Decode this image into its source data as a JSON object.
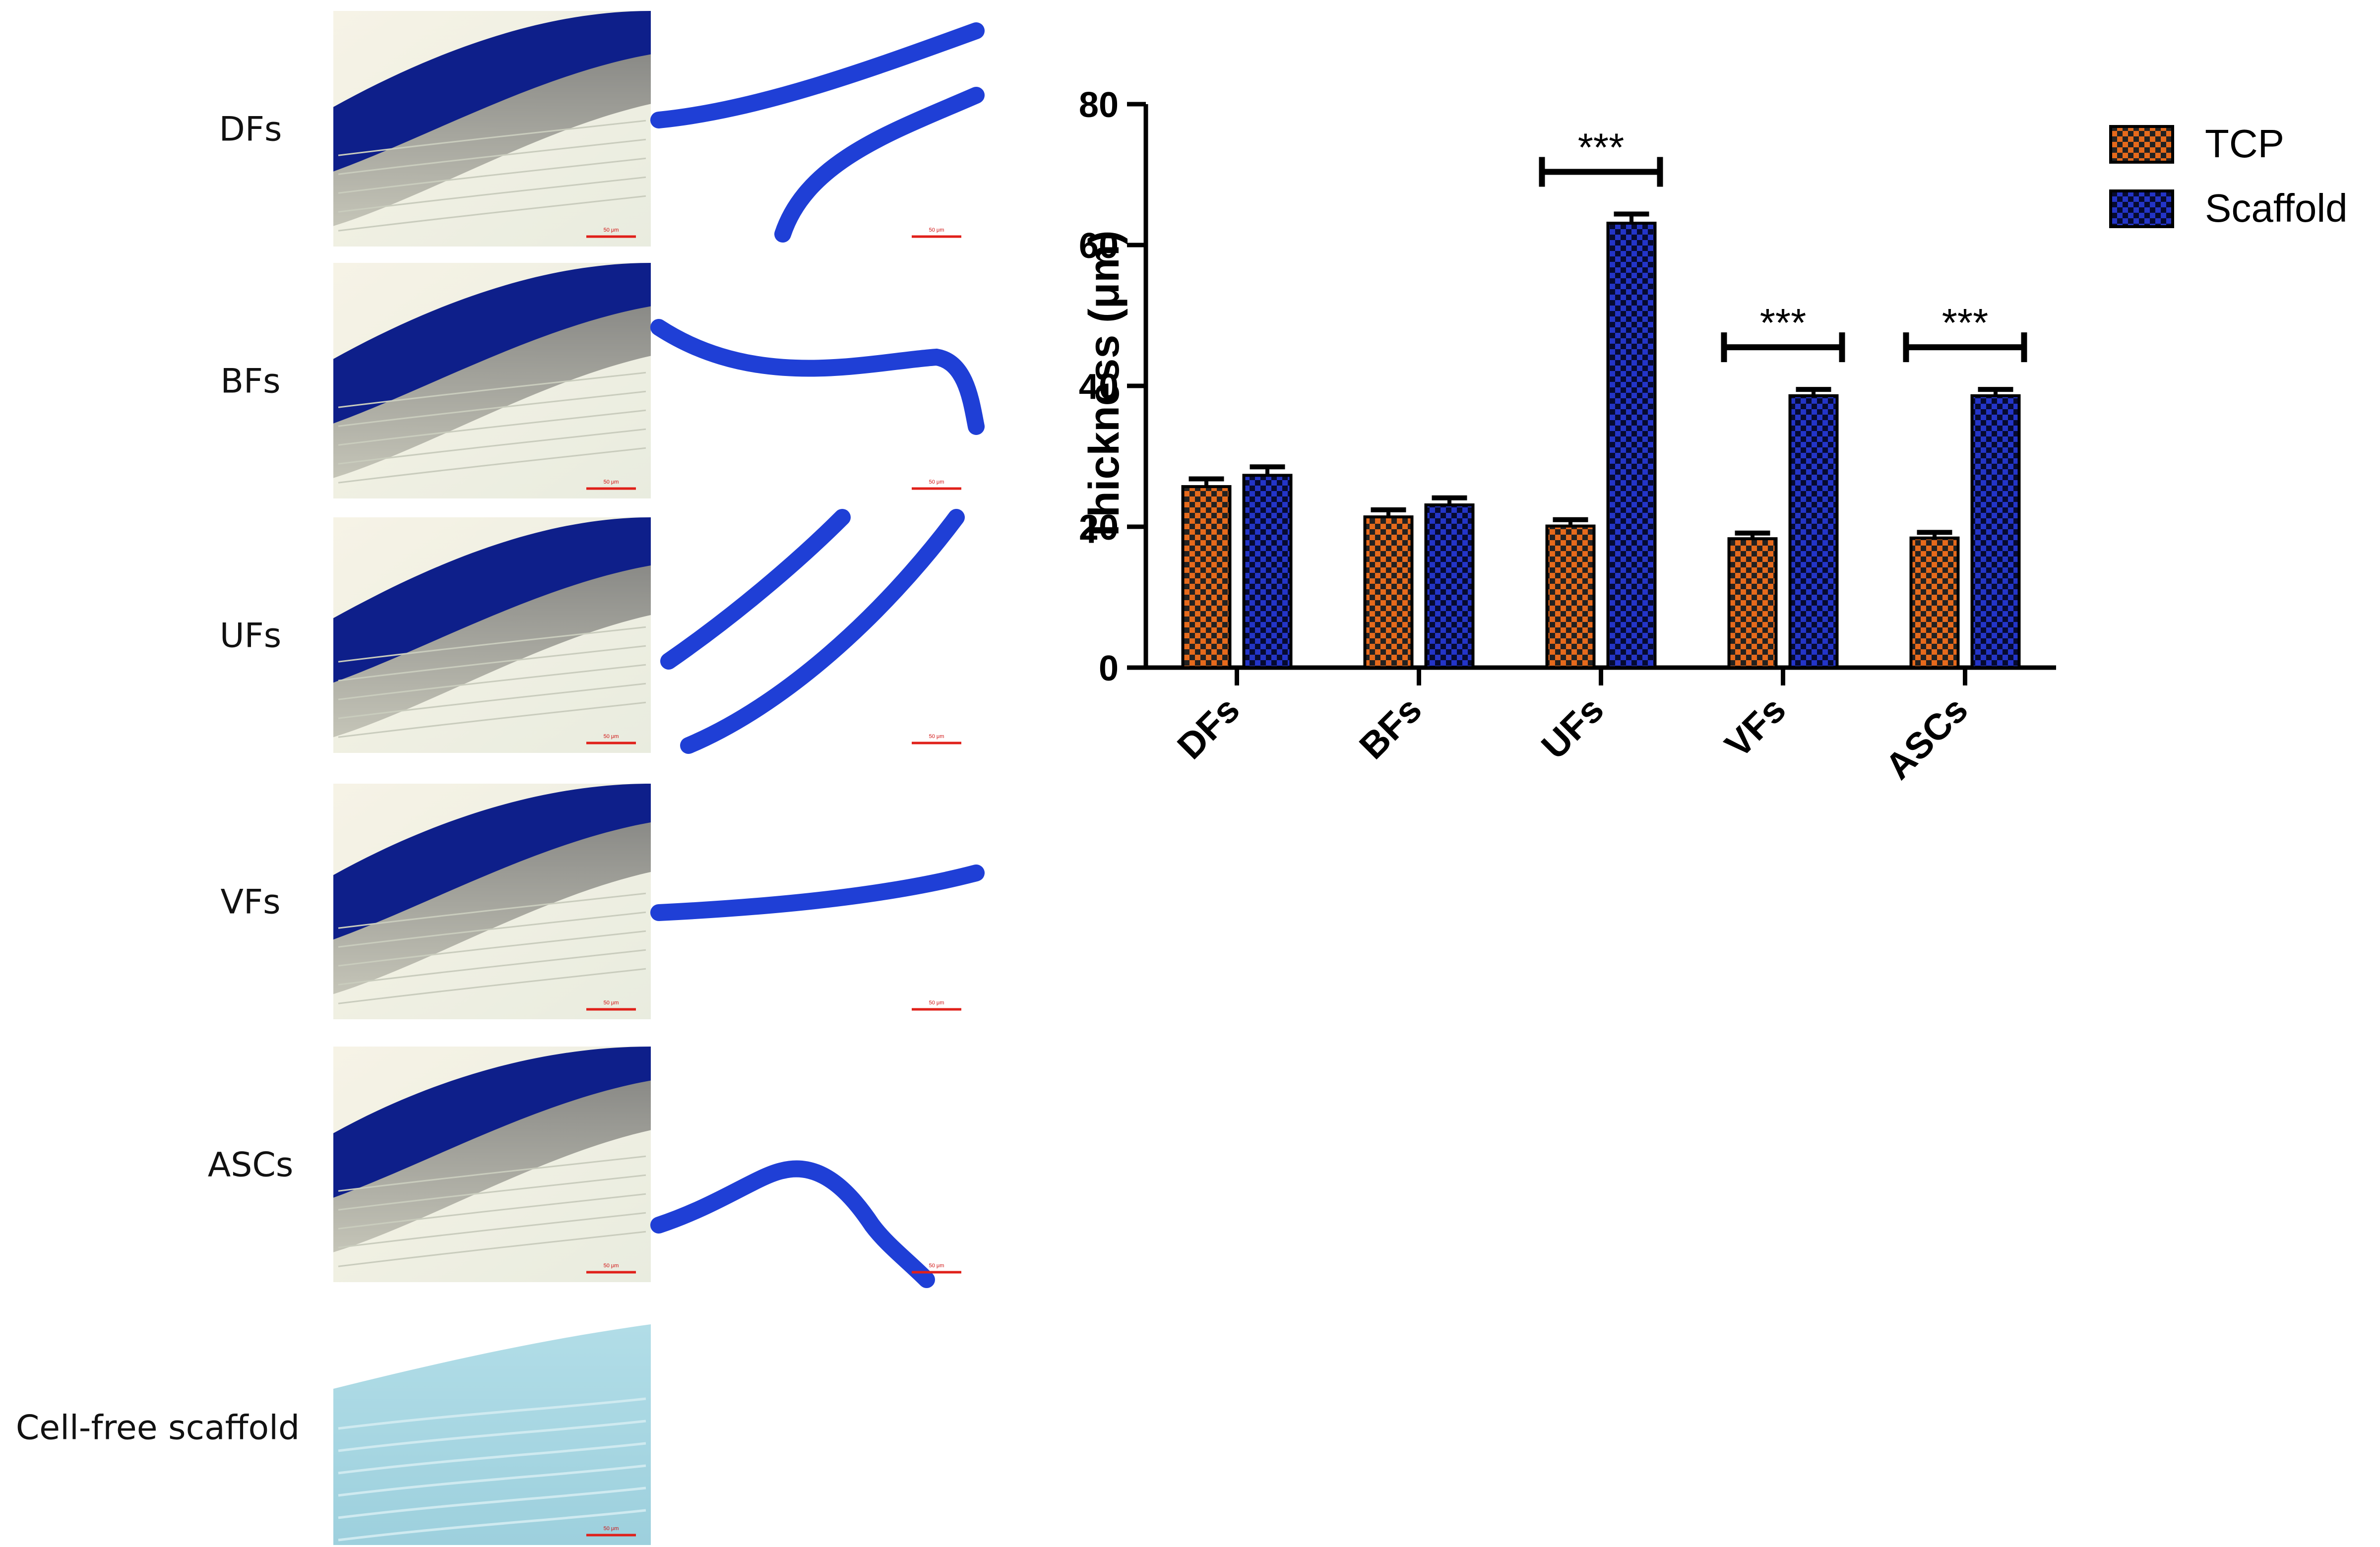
{
  "panel_a": {
    "rows": [
      {
        "label": "DFs",
        "tissue_tcp": true,
        "tissue_scaffold": true,
        "scalebar_tcp": "50 μm",
        "scalebar_scaffold": "50 μm"
      },
      {
        "label": "BFs",
        "tissue_tcp": true,
        "tissue_scaffold": true,
        "scalebar_tcp": "50 μm",
        "scalebar_scaffold": "50 μm"
      },
      {
        "label": "UFs",
        "tissue_tcp": true,
        "tissue_scaffold": true,
        "scalebar_tcp": "50 μm",
        "scalebar_scaffold": "50 μm"
      },
      {
        "label": "VFs",
        "tissue_tcp": true,
        "tissue_scaffold": true,
        "scalebar_tcp": "50 μm",
        "scalebar_scaffold": "50 μm"
      },
      {
        "label": "ASCs",
        "tissue_tcp": true,
        "tissue_scaffold": true,
        "scalebar_tcp": "50 μm",
        "scalebar_scaffold": "50 μm"
      },
      {
        "label": "Cell-free scaffold",
        "tissue_tcp": true,
        "tissue_scaffold": false,
        "scalebar_tcp": "50 μm",
        "scalebar_scaffold": ""
      }
    ],
    "colors": {
      "tissue_dark": "#0e1f8a",
      "tissue_bright": "#1f3fd6",
      "background_light": "#f4f1e2",
      "cellfree_bg": "#a9d8e3",
      "scalebar": "#e0201a"
    }
  },
  "chart_data": {
    "type": "bar",
    "categories": [
      "DFs",
      "BFs",
      "UFs",
      "VFs",
      "ASCs"
    ],
    "series": [
      {
        "name": "TCP",
        "values": [
          25.7,
          21.4,
          20.1,
          18.3,
          18.4
        ],
        "errors": [
          1.1,
          1.0,
          0.9,
          0.8,
          0.8
        ],
        "color": "#e66a1c"
      },
      {
        "name": "Scaffold",
        "values": [
          27.3,
          23.1,
          63.1,
          38.6,
          38.6
        ],
        "errors": [
          1.2,
          1.0,
          1.3,
          0.9,
          0.9
        ],
        "color": "#2435c8"
      }
    ],
    "significance": [
      {
        "category": "UFs",
        "label": "***"
      },
      {
        "category": "VFs",
        "label": "***"
      },
      {
        "category": "ASCs",
        "label": "***"
      }
    ],
    "title": "",
    "xlabel": "",
    "ylabel": "Thickness (μm)",
    "ylim": [
      0,
      80
    ],
    "yticks": [
      0,
      20,
      40,
      60,
      80
    ],
    "legend_position": "top-right",
    "grid": false
  }
}
